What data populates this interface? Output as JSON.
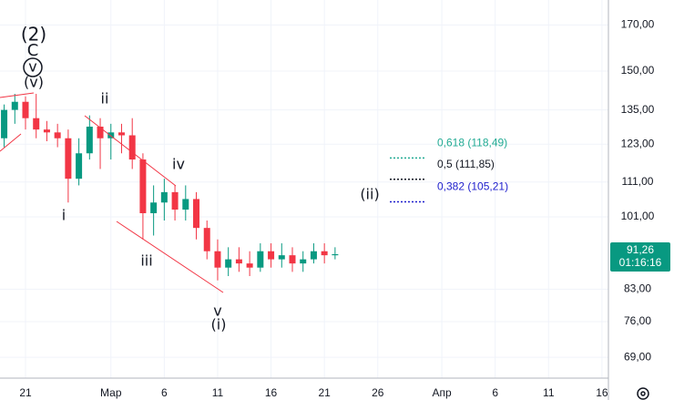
{
  "chart_data": {
    "type": "candlestick",
    "categories": [
      null,
      null,
      "21",
      null,
      null,
      null,
      null,
      null,
      null,
      null,
      "Мар",
      null,
      null,
      null,
      null,
      "6",
      null,
      null,
      null,
      null,
      "11",
      null,
      null,
      null,
      null,
      "16",
      null,
      null,
      null,
      null,
      "21",
      null,
      null,
      null,
      null,
      "26",
      null,
      null,
      null,
      null,
      null,
      "Апр",
      null,
      null,
      null,
      null,
      "6",
      null,
      null,
      null,
      null,
      "11",
      null,
      null,
      null,
      null,
      "16",
      null,
      null
    ],
    "open": [
      125,
      135,
      138,
      132,
      128,
      127,
      125,
      112,
      120,
      129,
      125,
      127,
      126,
      118,
      102,
      105,
      108,
      103,
      106,
      98,
      92,
      88,
      90,
      89,
      88,
      92,
      90,
      91,
      89,
      90,
      92,
      91,
      null,
      null,
      null,
      null,
      null,
      null,
      null,
      null,
      null,
      null,
      null,
      null,
      null,
      null,
      null,
      null,
      null,
      null,
      null,
      null,
      null,
      null,
      null,
      null,
      null,
      null,
      null
    ],
    "high": [
      137,
      141,
      140,
      141,
      131,
      130,
      128,
      125,
      133,
      132,
      130,
      130,
      132,
      120,
      110,
      112,
      110,
      110,
      108,
      100,
      95,
      93,
      93,
      92,
      94,
      94,
      94,
      93,
      92,
      94,
      94,
      93,
      null,
      null,
      null,
      null,
      null,
      null,
      null,
      null,
      null,
      null,
      null,
      null,
      null,
      null,
      null,
      null,
      null,
      null,
      null,
      null,
      null,
      null,
      null,
      null,
      null,
      null,
      null
    ],
    "low": [
      122,
      130,
      128,
      125,
      124,
      122,
      105,
      110,
      118,
      115,
      118,
      120,
      115,
      95,
      96,
      100,
      100,
      100,
      95,
      90,
      85,
      86,
      87,
      86,
      87,
      88,
      88,
      87,
      87,
      89,
      89,
      90,
      null,
      null,
      null,
      null,
      null,
      null,
      null,
      null,
      null,
      null,
      null,
      null,
      null,
      null,
      null,
      null,
      null,
      null,
      null,
      null,
      null,
      null,
      null,
      null,
      null,
      null,
      null
    ],
    "close": [
      135,
      138,
      132,
      128,
      127,
      125,
      112,
      120,
      129,
      125,
      127,
      126,
      118,
      102,
      105,
      108,
      103,
      106,
      98,
      92,
      88,
      90,
      89,
      88,
      92,
      90,
      91,
      89,
      90,
      92,
      91,
      91.26,
      null,
      null,
      null,
      null,
      null,
      null,
      null,
      null,
      null,
      null,
      null,
      null,
      null,
      null,
      null,
      null,
      null,
      null,
      null,
      null,
      null,
      null,
      null,
      null,
      null,
      null,
      null
    ],
    "up_color": "#089981",
    "down_color": "#f23645",
    "log_scale": true,
    "grid": true,
    "ylim": [
      65.2,
      181.9
    ],
    "yticks": [
      {
        "value": 170,
        "label": "170,00"
      },
      {
        "value": 150,
        "label": "150,00"
      },
      {
        "value": 135,
        "label": "135,00"
      },
      {
        "value": 123,
        "label": "123,00"
      },
      {
        "value": 111,
        "label": "111,00"
      },
      {
        "value": 101,
        "label": "101,00"
      },
      {
        "value": 83,
        "label": "83,00"
      },
      {
        "value": 76,
        "label": "76,00"
      },
      {
        "value": 69,
        "label": "69,00"
      }
    ],
    "last_price": {
      "value": 91.26,
      "label": "91,26"
    },
    "countdown": "01:16:16",
    "fib_levels": [
      {
        "value": 118.49,
        "label": "0,618 (118,49)",
        "color": "#22ab94"
      },
      {
        "value": 111.85,
        "label": "0,5 (111,85)",
        "color": "#131722"
      },
      {
        "value": 105.21,
        "label": "0,382 (105,21)",
        "color": "#1e1ecc"
      }
    ],
    "wave_labels": [
      "(2)",
      "C",
      "v",
      "(v)",
      "ii",
      "i",
      "iii",
      "iv",
      "v",
      "(i)",
      "(ii)"
    ]
  }
}
